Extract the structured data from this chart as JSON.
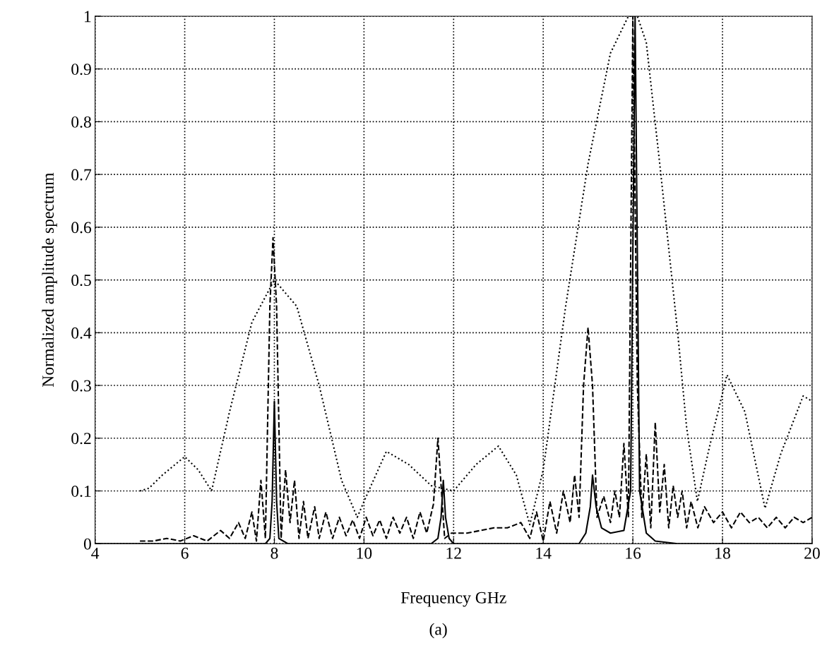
{
  "chart_data": {
    "type": "line",
    "xlabel": "Frequency GHz",
    "ylabel": "Normalized amplitude spectrum",
    "annotations": [
      "(a)"
    ],
    "xlim": [
      4,
      20
    ],
    "xticks": [
      4,
      6,
      8,
      10,
      12,
      14,
      16,
      18,
      20
    ],
    "ylim": [
      0,
      1
    ],
    "yticks": [
      0,
      0.1,
      0.2,
      0.3,
      0.4,
      0.5,
      0.6,
      0.7,
      0.8,
      0.9,
      1
    ],
    "grid": true,
    "marker": "none",
    "series": [
      {
        "color": "#000000",
        "line_style": "dotted",
        "x": [
          5.0,
          5.2,
          5.5,
          6.0,
          6.3,
          6.6,
          7.0,
          7.5,
          8.0,
          8.5,
          9.0,
          9.5,
          9.85,
          10.0,
          10.5,
          11.0,
          11.5,
          12.0,
          12.5,
          13.0,
          13.4,
          13.7,
          14.0,
          14.5,
          15.0,
          15.5,
          15.9,
          16.1,
          16.3,
          16.6,
          17.0,
          17.2,
          17.44,
          17.7,
          18.1,
          18.5,
          18.95,
          19.3,
          19.8,
          20.0
        ],
        "values": [
          0.1,
          0.105,
          0.13,
          0.165,
          0.14,
          0.1,
          0.25,
          0.42,
          0.5,
          0.45,
          0.3,
          0.12,
          0.05,
          0.08,
          0.175,
          0.15,
          0.11,
          0.1,
          0.15,
          0.185,
          0.13,
          0.036,
          0.14,
          0.45,
          0.72,
          0.93,
          1.0,
          1.0,
          0.95,
          0.72,
          0.4,
          0.22,
          0.08,
          0.18,
          0.32,
          0.25,
          0.067,
          0.17,
          0.28,
          0.27
        ]
      },
      {
        "color": "#000000",
        "line_style": "dashed",
        "x": [
          5.0,
          5.3,
          5.6,
          5.9,
          6.2,
          6.5,
          6.8,
          7.0,
          7.2,
          7.35,
          7.5,
          7.6,
          7.7,
          7.8,
          7.9,
          7.97,
          8.05,
          8.15,
          8.25,
          8.35,
          8.45,
          8.55,
          8.65,
          8.75,
          8.9,
          9.0,
          9.15,
          9.3,
          9.45,
          9.6,
          9.75,
          9.9,
          10.05,
          10.2,
          10.35,
          10.5,
          10.65,
          10.8,
          10.95,
          11.1,
          11.25,
          11.4,
          11.55,
          11.65,
          11.8,
          11.95,
          12.3,
          12.6,
          12.9,
          13.2,
          13.5,
          13.7,
          13.85,
          14.0,
          14.15,
          14.3,
          14.45,
          14.6,
          14.7,
          14.8,
          14.9,
          15.0,
          15.1,
          15.2,
          15.35,
          15.5,
          15.6,
          15.7,
          15.8,
          15.9,
          16.0,
          16.1,
          16.2,
          16.3,
          16.4,
          16.5,
          16.6,
          16.7,
          16.8,
          16.9,
          17.0,
          17.1,
          17.2,
          17.3,
          17.45,
          17.6,
          17.8,
          18.0,
          18.2,
          18.4,
          18.6,
          18.8,
          19.0,
          19.2,
          19.4,
          19.6,
          19.8,
          20.0
        ],
        "values": [
          0.005,
          0.005,
          0.01,
          0.005,
          0.015,
          0.005,
          0.025,
          0.01,
          0.04,
          0.01,
          0.06,
          0.005,
          0.12,
          0.01,
          0.45,
          0.58,
          0.45,
          0.01,
          0.14,
          0.04,
          0.12,
          0.01,
          0.08,
          0.01,
          0.07,
          0.01,
          0.06,
          0.01,
          0.05,
          0.015,
          0.045,
          0.01,
          0.05,
          0.015,
          0.045,
          0.01,
          0.05,
          0.02,
          0.05,
          0.01,
          0.06,
          0.02,
          0.075,
          0.2,
          0.01,
          0.02,
          0.02,
          0.025,
          0.03,
          0.03,
          0.04,
          0.01,
          0.06,
          0.005,
          0.08,
          0.02,
          0.1,
          0.04,
          0.13,
          0.05,
          0.3,
          0.41,
          0.3,
          0.05,
          0.09,
          0.04,
          0.1,
          0.05,
          0.19,
          0.05,
          1.0,
          0.3,
          0.05,
          0.17,
          0.03,
          0.23,
          0.06,
          0.15,
          0.03,
          0.11,
          0.05,
          0.1,
          0.03,
          0.08,
          0.03,
          0.07,
          0.04,
          0.06,
          0.03,
          0.06,
          0.04,
          0.05,
          0.03,
          0.05,
          0.03,
          0.05,
          0.04,
          0.05
        ]
      },
      {
        "color": "#000000",
        "line_style": "solid",
        "x": [
          4.0,
          7.8,
          7.9,
          7.95,
          8.0,
          8.05,
          8.1,
          8.3,
          11.5,
          11.65,
          11.72,
          11.77,
          11.82,
          11.9,
          12.0,
          14.8,
          14.95,
          15.05,
          15.1,
          15.18,
          15.3,
          15.5,
          15.8,
          15.95,
          16.05,
          16.15,
          16.3,
          16.5,
          17.0,
          20.0
        ],
        "values": [
          0,
          0,
          0.01,
          0.08,
          0.27,
          0.08,
          0.01,
          0,
          0,
          0.01,
          0.05,
          0.12,
          0.05,
          0.01,
          0,
          0,
          0.02,
          0.07,
          0.13,
          0.07,
          0.03,
          0.02,
          0.025,
          0.1,
          1.0,
          0.1,
          0.02,
          0.005,
          0,
          0
        ]
      }
    ]
  }
}
